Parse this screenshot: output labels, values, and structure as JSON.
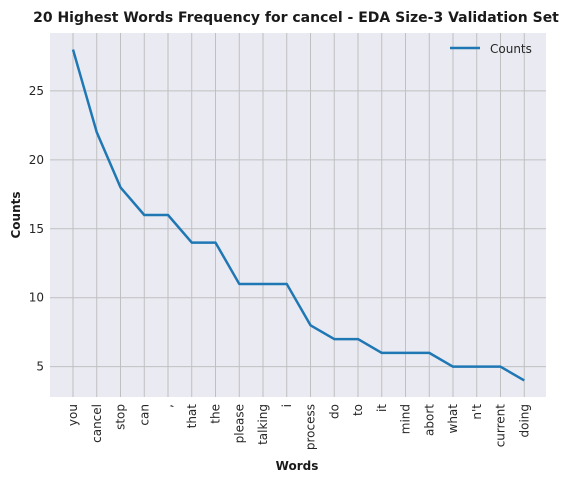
{
  "chart_data": {
    "type": "line",
    "title": "20 Highest Words Frequency for cancel - EDA Size-3 Validation Set",
    "xlabel": "Words",
    "ylabel": "Counts",
    "categories": [
      "you",
      "cancel",
      "stop",
      "can",
      ",",
      "that",
      "the",
      "please",
      "talking",
      "i",
      "process",
      "do",
      "to",
      "it",
      "mind",
      "abort",
      "what",
      "n't",
      "current",
      "doing"
    ],
    "series": [
      {
        "name": "Counts",
        "values": [
          28,
          22,
          18,
          16,
          16,
          14,
          14,
          11,
          11,
          11,
          8,
          7,
          7,
          6,
          6,
          6,
          5,
          5,
          5,
          4
        ],
        "color": "#1f77b4"
      }
    ],
    "yticks": [
      5,
      10,
      15,
      20,
      25
    ],
    "ylim": [
      2.8,
      29.2
    ],
    "grid": true,
    "legend_position": "top-right",
    "background_color": "#eaeaf2",
    "grid_color": "#c0c0c0"
  }
}
